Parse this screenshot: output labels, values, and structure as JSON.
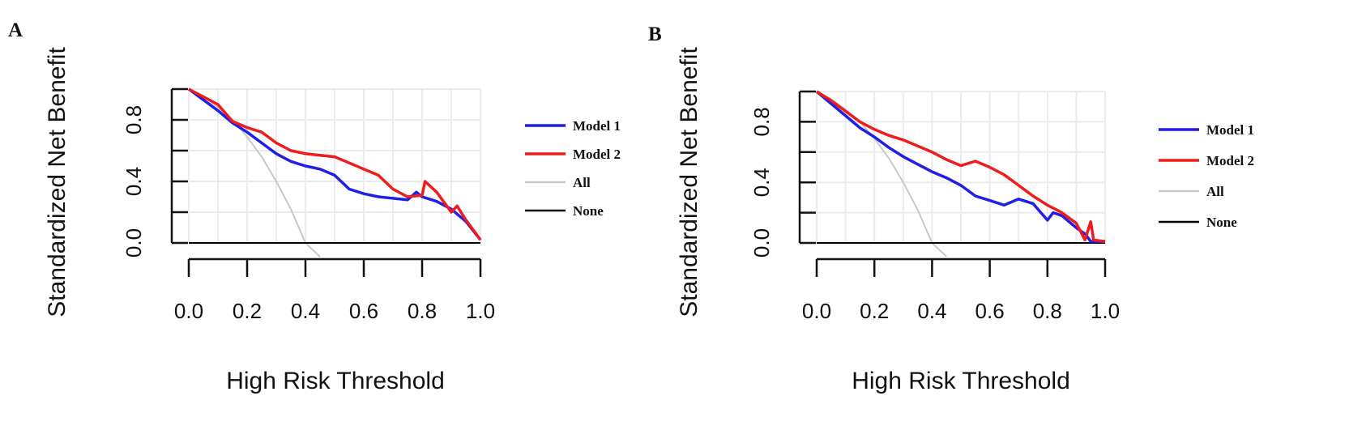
{
  "chart_data": [
    {
      "type": "line",
      "panel_label": "A",
      "xlabel": "High Risk Threshold",
      "ylabel": "Standardized Net Benefit",
      "xlim": [
        0,
        1
      ],
      "ylim": [
        0,
        1
      ],
      "x_ticks": [
        "0.0",
        "0.2",
        "0.4",
        "0.6",
        "0.8",
        "1.0"
      ],
      "y_ticks": [
        "0.0",
        "0.4",
        "0.8"
      ],
      "grid": true,
      "legend": "right",
      "series": [
        {
          "name": "Model 1",
          "color": "#1f1fe6",
          "x": [
            0.0,
            0.05,
            0.1,
            0.15,
            0.2,
            0.25,
            0.3,
            0.35,
            0.4,
            0.45,
            0.5,
            0.55,
            0.6,
            0.65,
            0.7,
            0.75,
            0.78,
            0.8,
            0.85,
            0.9,
            0.95,
            1.0
          ],
          "y": [
            1.0,
            0.93,
            0.86,
            0.78,
            0.72,
            0.65,
            0.58,
            0.53,
            0.5,
            0.48,
            0.44,
            0.35,
            0.32,
            0.3,
            0.29,
            0.28,
            0.33,
            0.3,
            0.27,
            0.22,
            0.14,
            0.02
          ]
        },
        {
          "name": "Model 2",
          "color": "#ee1c1c",
          "x": [
            0.0,
            0.05,
            0.1,
            0.15,
            0.2,
            0.25,
            0.3,
            0.35,
            0.4,
            0.45,
            0.5,
            0.55,
            0.6,
            0.65,
            0.7,
            0.75,
            0.8,
            0.81,
            0.85,
            0.9,
            0.92,
            0.95,
            1.0
          ],
          "y": [
            1.0,
            0.95,
            0.9,
            0.79,
            0.75,
            0.72,
            0.65,
            0.6,
            0.58,
            0.57,
            0.56,
            0.52,
            0.48,
            0.44,
            0.35,
            0.3,
            0.31,
            0.4,
            0.33,
            0.2,
            0.24,
            0.15,
            0.02
          ]
        },
        {
          "name": "All",
          "color": "#c8c8c8",
          "x": [
            0.0,
            0.05,
            0.1,
            0.15,
            0.2,
            0.25,
            0.3,
            0.35,
            0.4,
            0.45
          ],
          "y": [
            1.0,
            0.95,
            0.88,
            0.8,
            0.69,
            0.56,
            0.4,
            0.22,
            0.0,
            -0.09
          ]
        },
        {
          "name": "None",
          "color": "#000000",
          "x": [
            0.0,
            1.0
          ],
          "y": [
            0.0,
            0.0
          ]
        }
      ]
    },
    {
      "type": "line",
      "panel_label": "B",
      "xlabel": "High Risk Threshold",
      "ylabel": "Standardized Net Benefit",
      "xlim": [
        0,
        1
      ],
      "ylim": [
        0,
        1
      ],
      "x_ticks": [
        "0.0",
        "0.2",
        "0.4",
        "0.6",
        "0.8",
        "1.0"
      ],
      "y_ticks": [
        "0.0",
        "0.4",
        "0.8"
      ],
      "grid": true,
      "legend": "right",
      "series": [
        {
          "name": "Model 1",
          "color": "#1f1fe6",
          "x": [
            0.0,
            0.05,
            0.1,
            0.15,
            0.2,
            0.25,
            0.3,
            0.35,
            0.4,
            0.45,
            0.5,
            0.55,
            0.6,
            0.65,
            0.7,
            0.75,
            0.8,
            0.82,
            0.85,
            0.9,
            0.93,
            0.95,
            1.0
          ],
          "y": [
            1.0,
            0.92,
            0.84,
            0.76,
            0.7,
            0.63,
            0.57,
            0.52,
            0.47,
            0.43,
            0.38,
            0.31,
            0.28,
            0.25,
            0.29,
            0.26,
            0.15,
            0.2,
            0.18,
            0.1,
            0.06,
            0.01,
            0.01
          ]
        },
        {
          "name": "Model 2",
          "color": "#ee1c1c",
          "x": [
            0.0,
            0.05,
            0.1,
            0.15,
            0.2,
            0.25,
            0.3,
            0.35,
            0.4,
            0.45,
            0.5,
            0.55,
            0.6,
            0.65,
            0.7,
            0.75,
            0.8,
            0.85,
            0.9,
            0.93,
            0.95,
            0.96,
            1.0
          ],
          "y": [
            1.0,
            0.94,
            0.87,
            0.8,
            0.75,
            0.71,
            0.68,
            0.64,
            0.6,
            0.55,
            0.51,
            0.54,
            0.5,
            0.45,
            0.38,
            0.31,
            0.25,
            0.2,
            0.13,
            0.02,
            0.14,
            0.02,
            0.01
          ]
        },
        {
          "name": "All",
          "color": "#c8c8c8",
          "x": [
            0.0,
            0.05,
            0.1,
            0.15,
            0.2,
            0.25,
            0.3,
            0.35,
            0.4,
            0.45
          ],
          "y": [
            1.0,
            0.95,
            0.88,
            0.8,
            0.69,
            0.56,
            0.4,
            0.22,
            0.0,
            -0.09
          ]
        },
        {
          "name": "None",
          "color": "#000000",
          "x": [
            0.0,
            1.0
          ],
          "y": [
            0.0,
            0.0
          ]
        }
      ]
    }
  ]
}
